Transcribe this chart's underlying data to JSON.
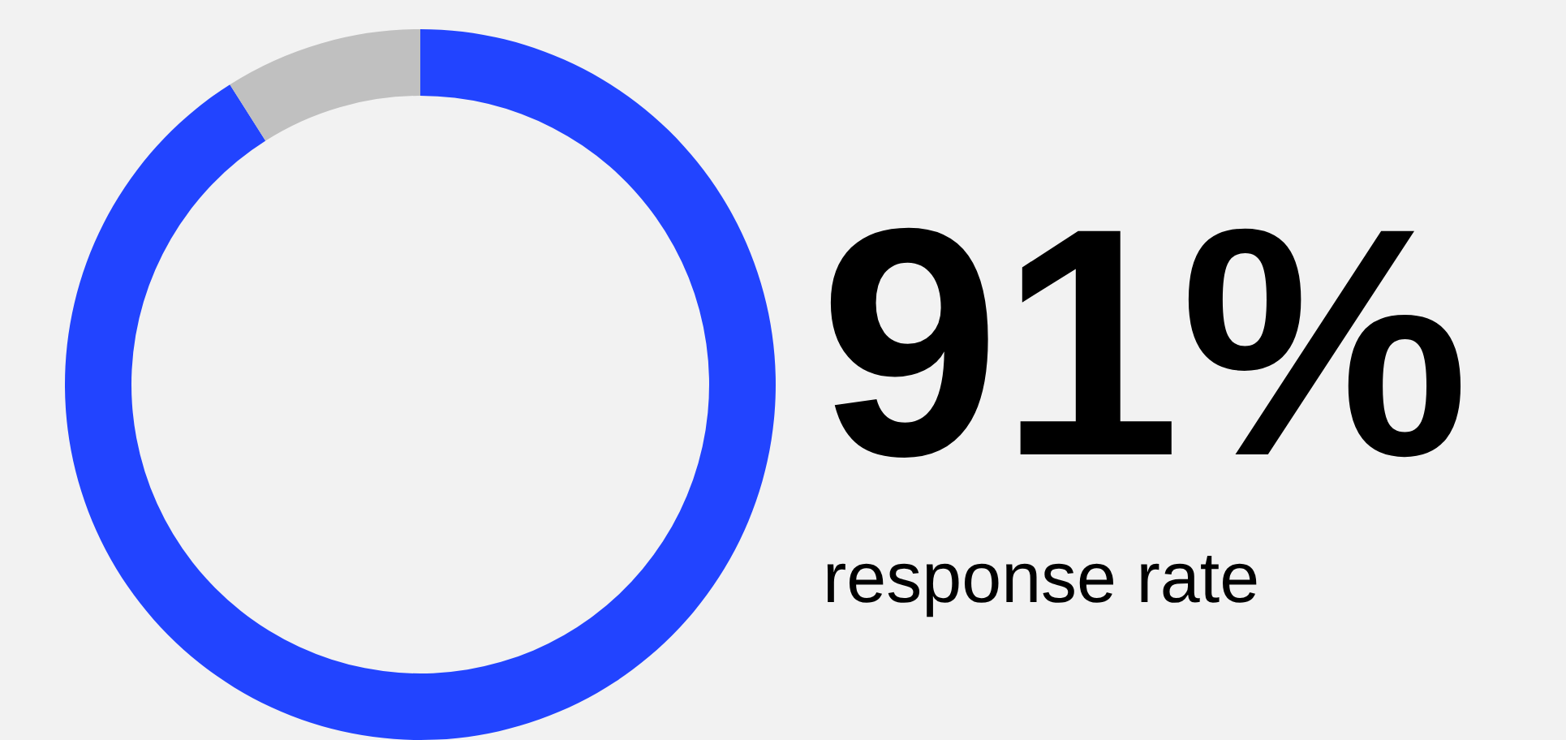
{
  "chart_data": {
    "type": "donut",
    "categories": [
      "response rate",
      null
    ],
    "values": [
      91,
      9
    ],
    "colors": [
      "#2244ff",
      "#c0c0c0"
    ],
    "value_labels": [
      "91%",
      null
    ]
  }
}
